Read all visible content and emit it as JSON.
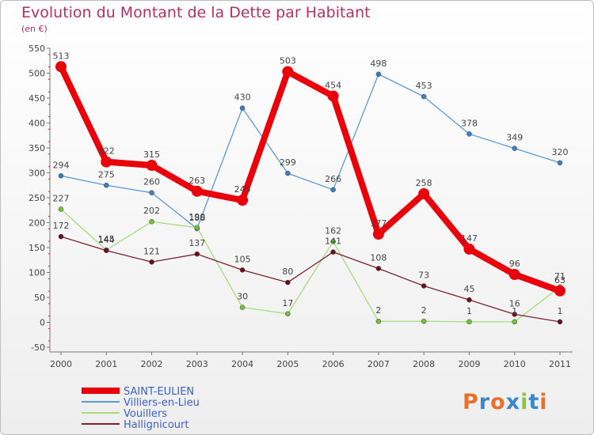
{
  "header": {
    "title": "Evolution du Montant de la Dette par Habitant",
    "subtitle": "(en €)"
  },
  "logo": {
    "text": "Proxiti",
    "colors": [
      "#e8702a",
      "#3a88c8",
      "#e8702a",
      "#3a88c8",
      "#8cc640",
      "#3a88c8",
      "#e8702a"
    ]
  },
  "chart_data": {
    "type": "line",
    "title": "Evolution du Montant de la Dette par Habitant",
    "subtitle": "(en €)",
    "xlabel": "",
    "ylabel": "",
    "ylim": [
      -50,
      550
    ],
    "ytick_step": 50,
    "grid": false,
    "legend_position": "bottom-left",
    "categories": [
      "2000",
      "2001",
      "2002",
      "2003",
      "2004",
      "2005",
      "2006",
      "2007",
      "2008",
      "2009",
      "2010",
      "2011"
    ],
    "series": [
      {
        "name": "SAINT-EULIEN",
        "color": "#e8000b",
        "marker_color": "#e8000b",
        "emphasis": "thick",
        "values": [
          513,
          322,
          315,
          263,
          245,
          503,
          454,
          177,
          258,
          147,
          96,
          63
        ]
      },
      {
        "name": "Villiers-en-Lieu",
        "color": "#5b9bd5",
        "marker_color": "#3f7fbf",
        "emphasis": "normal",
        "values": [
          294,
          275,
          260,
          188,
          430,
          299,
          266,
          498,
          453,
          378,
          349,
          320
        ]
      },
      {
        "name": "Vouillers",
        "color": "#a6dc7a",
        "marker_color": "#74c23a",
        "emphasis": "normal",
        "values": [
          227,
          145,
          202,
          190,
          30,
          17,
          162,
          2,
          2,
          1,
          1,
          71
        ]
      },
      {
        "name": "Hallignicourt",
        "color": "#7b2230",
        "marker_color": "#6b1020",
        "emphasis": "normal",
        "values": [
          172,
          144,
          121,
          137,
          105,
          80,
          141,
          108,
          73,
          45,
          16,
          1
        ]
      }
    ]
  }
}
